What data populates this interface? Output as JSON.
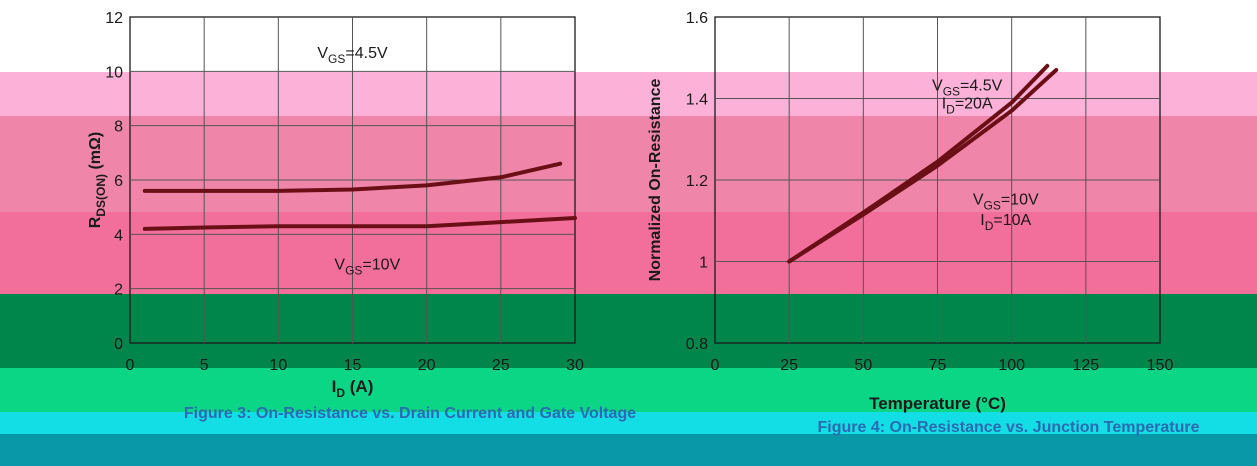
{
  "bands": [
    {
      "name": "band-pink-light",
      "color": "#fbb1d8"
    },
    {
      "name": "band-pink-mid",
      "color": "#f085aa"
    },
    {
      "name": "band-pink-deep",
      "color": "#f26f9b"
    },
    {
      "name": "band-green-dark",
      "color": "#00854a"
    },
    {
      "name": "band-green-bright",
      "color": "#0ad686"
    },
    {
      "name": "band-cyan",
      "color": "#13dee6"
    },
    {
      "name": "band-teal",
      "color": "#0898a8"
    }
  ],
  "colors": {
    "curve": "#6b0f17",
    "grid": "#1a1a1a",
    "text": "#1a1a1a",
    "caption": "#2c6bb0"
  },
  "chart_data": [
    {
      "type": "line",
      "xlabel": "I_D (A)",
      "ylabel": "R_DS(ON) (mΩ)",
      "xlim": [
        0,
        30
      ],
      "ylim": [
        0,
        12
      ],
      "xticks": [
        0,
        5,
        10,
        15,
        20,
        25,
        30
      ],
      "yticks": [
        0,
        2,
        4,
        6,
        8,
        10,
        12
      ],
      "grid": true,
      "series": [
        {
          "name": "V_GS=4.5V",
          "x": [
            1,
            5,
            10,
            15,
            20,
            25,
            29
          ],
          "y": [
            5.6,
            5.6,
            5.6,
            5.65,
            5.8,
            6.1,
            6.6
          ]
        },
        {
          "name": "V_GS=10V",
          "x": [
            1,
            5,
            10,
            15,
            20,
            25,
            30
          ],
          "y": [
            4.2,
            4.25,
            4.3,
            4.3,
            4.3,
            4.45,
            4.6
          ]
        }
      ],
      "annotations": [
        {
          "text": "V_GS=4.5V",
          "x": 15,
          "y": 10.5
        },
        {
          "text": "V_GS=10V",
          "x": 16,
          "y": 2.7
        }
      ],
      "title": "Figure 3: On-Resistance vs. Drain Current and Gate Voltage"
    },
    {
      "type": "line",
      "xlabel": "Temperature (°C)",
      "ylabel": "Normalized On-Resistance",
      "xlim": [
        0,
        150
      ],
      "ylim": [
        0.8,
        1.6
      ],
      "xticks": [
        0,
        25,
        50,
        75,
        100,
        125,
        150
      ],
      "yticks": [
        0.8,
        1,
        1.2,
        1.4,
        1.6
      ],
      "grid": true,
      "series": [
        {
          "name": "V_GS=4.5V, I_D=20A",
          "x": [
            25,
            50,
            75,
            100,
            112
          ],
          "y": [
            1.0,
            1.12,
            1.245,
            1.39,
            1.48
          ]
        },
        {
          "name": "V_GS=10V, I_D=10A",
          "x": [
            25,
            50,
            75,
            100,
            115
          ],
          "y": [
            1.0,
            1.115,
            1.235,
            1.37,
            1.47
          ]
        }
      ],
      "annotations": [
        {
          "text": "V_GS=4.5V",
          "x": 85,
          "y": 1.42
        },
        {
          "text": "I_D=20A",
          "x": 85,
          "y": 1.375
        },
        {
          "text": "V_GS=10V",
          "x": 98,
          "y": 1.14
        },
        {
          "text": "I_D=10A",
          "x": 98,
          "y": 1.09
        }
      ],
      "title": "Figure 4: On-Resistance vs. Junction Temperature"
    }
  ]
}
